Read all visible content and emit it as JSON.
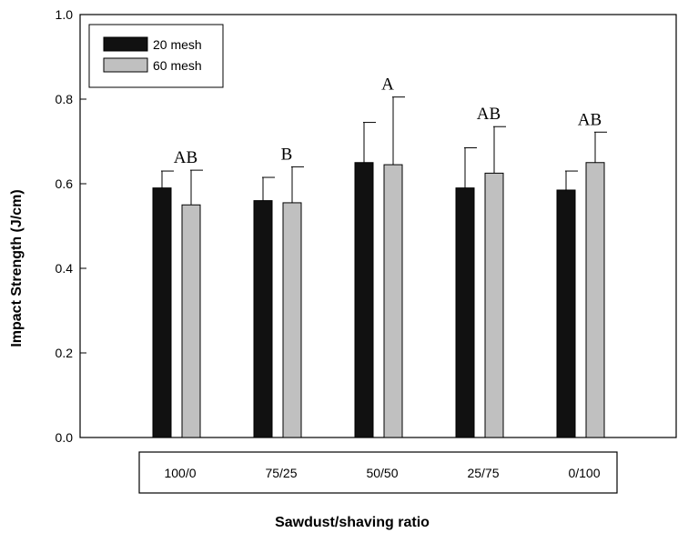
{
  "chart_data": {
    "type": "bar",
    "title": "",
    "xlabel": "Sawdust/shaving ratio",
    "ylabel": "Impact Strength (J/cm)",
    "ylim": [
      0,
      1.0
    ],
    "yticks": [
      "0.0",
      "0.2",
      "0.4",
      "0.6",
      "0.8",
      "1.0"
    ],
    "grid": false,
    "legend_position": "top-left",
    "categories": [
      "100/0",
      "75/25",
      "50/50",
      "25/75",
      "0/100"
    ],
    "series": [
      {
        "name": "20 mesh",
        "color": "#111111",
        "values": [
          0.59,
          0.56,
          0.65,
          0.59,
          0.585
        ],
        "errors": [
          0.04,
          0.055,
          0.095,
          0.095,
          0.045
        ]
      },
      {
        "name": "60 mesh",
        "color": "#c0c0c0",
        "values": [
          0.55,
          0.555,
          0.645,
          0.625,
          0.65
        ],
        "errors": [
          0.082,
          0.085,
          0.16,
          0.11,
          0.072
        ]
      }
    ],
    "annotations": [
      "AB",
      "B",
      "A",
      "AB",
      "AB"
    ]
  }
}
